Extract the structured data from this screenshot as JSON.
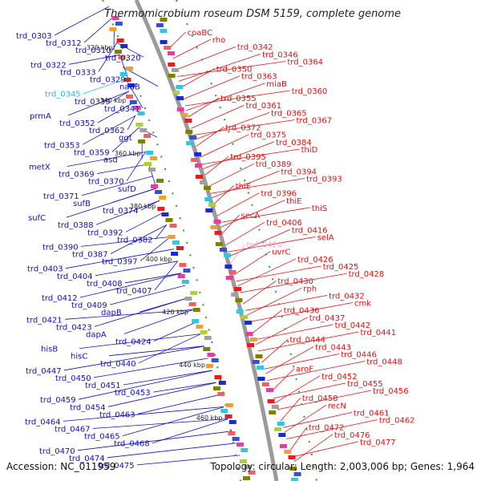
{
  "title": "Thermomicrobium roseum DSM 5159, complete genome",
  "footer": {
    "accession": "Accession: NC_011959",
    "stats": "Topology: circular; Length: 2,003,006 bp; Genes: 1,964"
  },
  "colors": {
    "left_label": "#1010c0",
    "right_label": "#e01010",
    "highlight_left": "#30b8e0",
    "highlight_right": "#f0a8d8"
  },
  "ticks": [
    "320 kbp",
    "340 kbp",
    "360 kbp",
    "380 kbp",
    "400 kbp",
    "420 kbp",
    "440 kbp",
    "460 kbp"
  ],
  "left_labels": [
    "trd_0303",
    "trd_0312",
    "trd_0310",
    "trd_0320",
    "trd_0322",
    "trd_0333",
    "trd_0329",
    "nadB",
    "trd_0345",
    "trd_0339",
    "trd_0341",
    "prmA",
    "trd_0352",
    "trd_0362",
    "ggt",
    "trd_0353",
    "trd_0359",
    "asd",
    "metX",
    "trd_0369",
    "trd_0370",
    "sufD",
    "trd_0371",
    "sufB",
    "trd_0374",
    "sufC",
    "trd_0388",
    "trd_0392",
    "trd_0382",
    "trd_0390",
    "trd_0387",
    "trd_0397",
    "trd_0403",
    "trd_0404",
    "trd_0408",
    "trd_0407",
    "trd_0412",
    "trd_0409",
    "dapB",
    "trd_0421",
    "trd_0423",
    "dapA",
    "trd_0424",
    "hisB",
    "hisC",
    "trd_0440",
    "trd_0447",
    "trd_0450",
    "trd_0451",
    "trd_0453",
    "trd_0459",
    "trd_0454",
    "trd_0463",
    "trd_0464",
    "trd_0467",
    "trd_0465",
    "trd_0468",
    "trd_0470",
    "trd_0474",
    "trd_0475"
  ],
  "right_labels": [
    "coaBC",
    "rho",
    "trd_0342",
    "trd_0346",
    "trd_0364",
    "trd_0350",
    "trd_0363",
    "miaB",
    "trd_0360",
    "trd_0355",
    "trd_0361",
    "trd_0365",
    "trd_0367",
    "trd_0372",
    "trd_0375",
    "trd_0384",
    "thiD",
    "trd_0395",
    "trd_0389",
    "trd_0394",
    "trd_0393",
    "thiE",
    "trd_0396",
    "thiE",
    "thiS",
    "secA",
    "trd_0406",
    "trd_0416",
    "selA",
    "trd_0420",
    "uvrC",
    "trd_0426",
    "trd_0425",
    "trd_0428",
    "trd_0430",
    "rph",
    "trd_0432",
    "cmk",
    "trd_0436",
    "trd_0437",
    "trd_0442",
    "trd_0441",
    "trd_0444",
    "trd_0443",
    "trd_0446",
    "trd_0448",
    "aroF",
    "trd_0452",
    "trd_0455",
    "trd_0456",
    "trd_0458",
    "recN",
    "trd_0461",
    "trd_0462",
    "trd_0472",
    "trd_0476",
    "trd_0477"
  ]
}
